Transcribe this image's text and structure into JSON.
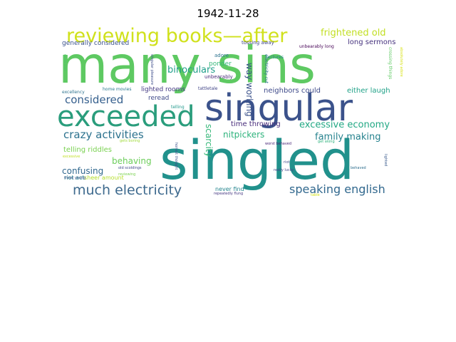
{
  "title": "1942-11-28",
  "words": [
    {
      "text": "many sins",
      "color": "#5ec962"
    },
    {
      "text": "singled",
      "color": "#21918c"
    },
    {
      "text": "singular",
      "color": "#3b528b"
    },
    {
      "text": "exceeded",
      "color": "#2a9d7c"
    },
    {
      "text": "reviewing books—after",
      "color": "#d0e11c"
    },
    {
      "text": "much electricity",
      "color": "#3e6a8e"
    },
    {
      "text": "speaking english",
      "color": "#31688e"
    },
    {
      "text": "crazy activities",
      "color": "#2c728e"
    },
    {
      "text": "considered",
      "color": "#355f8d"
    },
    {
      "text": "excessive economy",
      "color": "#22a884"
    },
    {
      "text": "family making",
      "color": "#26828e"
    },
    {
      "text": "binoculars",
      "color": "#1f9e89"
    },
    {
      "text": "frightened old",
      "color": "#c2df23"
    },
    {
      "text": "nitpickers",
      "color": "#2eb37c"
    },
    {
      "text": "scarcity",
      "color": "#35b779"
    },
    {
      "text": "way working",
      "color": "#3b528b"
    },
    {
      "text": "confusing",
      "color": "#31688e"
    },
    {
      "text": "behaving",
      "color": "#6ccd5a"
    },
    {
      "text": "neighbors could",
      "color": "#3e4a89"
    },
    {
      "text": "either laugh",
      "color": "#1fa187"
    },
    {
      "text": "long sermons",
      "color": "#46337e"
    },
    {
      "text": "telling riddles",
      "color": "#7ad151"
    },
    {
      "text": "time throwing",
      "color": "#472c7a"
    },
    {
      "text": "generally considered",
      "color": "#3b528b"
    },
    {
      "text": "lighted rooms",
      "color": "#443983"
    },
    {
      "text": "reread",
      "color": "#3e4989"
    },
    {
      "text": "ponder",
      "color": "#35b779"
    },
    {
      "text": "unbearably",
      "color": "#482878"
    },
    {
      "text": "adore",
      "color": "#2c728e"
    },
    {
      "text": "riot act",
      "color": "#26828e"
    },
    {
      "text": "sheer amount",
      "color": "#b5de2b"
    },
    {
      "text": "never find",
      "color": "#25858e"
    },
    {
      "text": "tossing away",
      "color": "#3f4788"
    },
    {
      "text": "unbearably long",
      "color": "#440154"
    },
    {
      "text": "lectures",
      "color": "#25838e"
    },
    {
      "text": "electricity cut",
      "color": "#2d708e"
    },
    {
      "text": "crossing things",
      "color": "#5ec962"
    },
    {
      "text": "absolutely adore",
      "color": "#d8e219"
    },
    {
      "text": "good pair",
      "color": "#52c569"
    },
    {
      "text": "singular pleasure",
      "color": "#3d4d8a"
    },
    {
      "text": "home movies",
      "color": "#2a788e"
    },
    {
      "text": "excellency",
      "color": "#2c728e"
    },
    {
      "text": "tattletale",
      "color": "#414487"
    },
    {
      "text": "telling",
      "color": "#1f988b"
    },
    {
      "text": "gets boring",
      "color": "#9fda3a"
    },
    {
      "text": "excessive",
      "color": "#c0df25"
    },
    {
      "text": "honest thought",
      "color": "#3b528b"
    },
    {
      "text": "old scoldings",
      "color": "#3f4889"
    },
    {
      "text": "reviewing",
      "color": "#7ad151"
    },
    {
      "text": "three young",
      "color": "#3b528b"
    },
    {
      "text": "worst behaved",
      "color": "#482576"
    },
    {
      "text": "riot",
      "color": "#3e4c8a"
    },
    {
      "text": "really lucky",
      "color": "#3f4788"
    },
    {
      "text": "repeatedly flung",
      "color": "#453781"
    },
    {
      "text": "get along",
      "color": "#2db27d"
    },
    {
      "text": "behaved",
      "color": "#2e6e8e"
    },
    {
      "text": "lighted",
      "color": "#38598c"
    },
    {
      "text": "table",
      "color": "#d5e21a"
    }
  ]
}
